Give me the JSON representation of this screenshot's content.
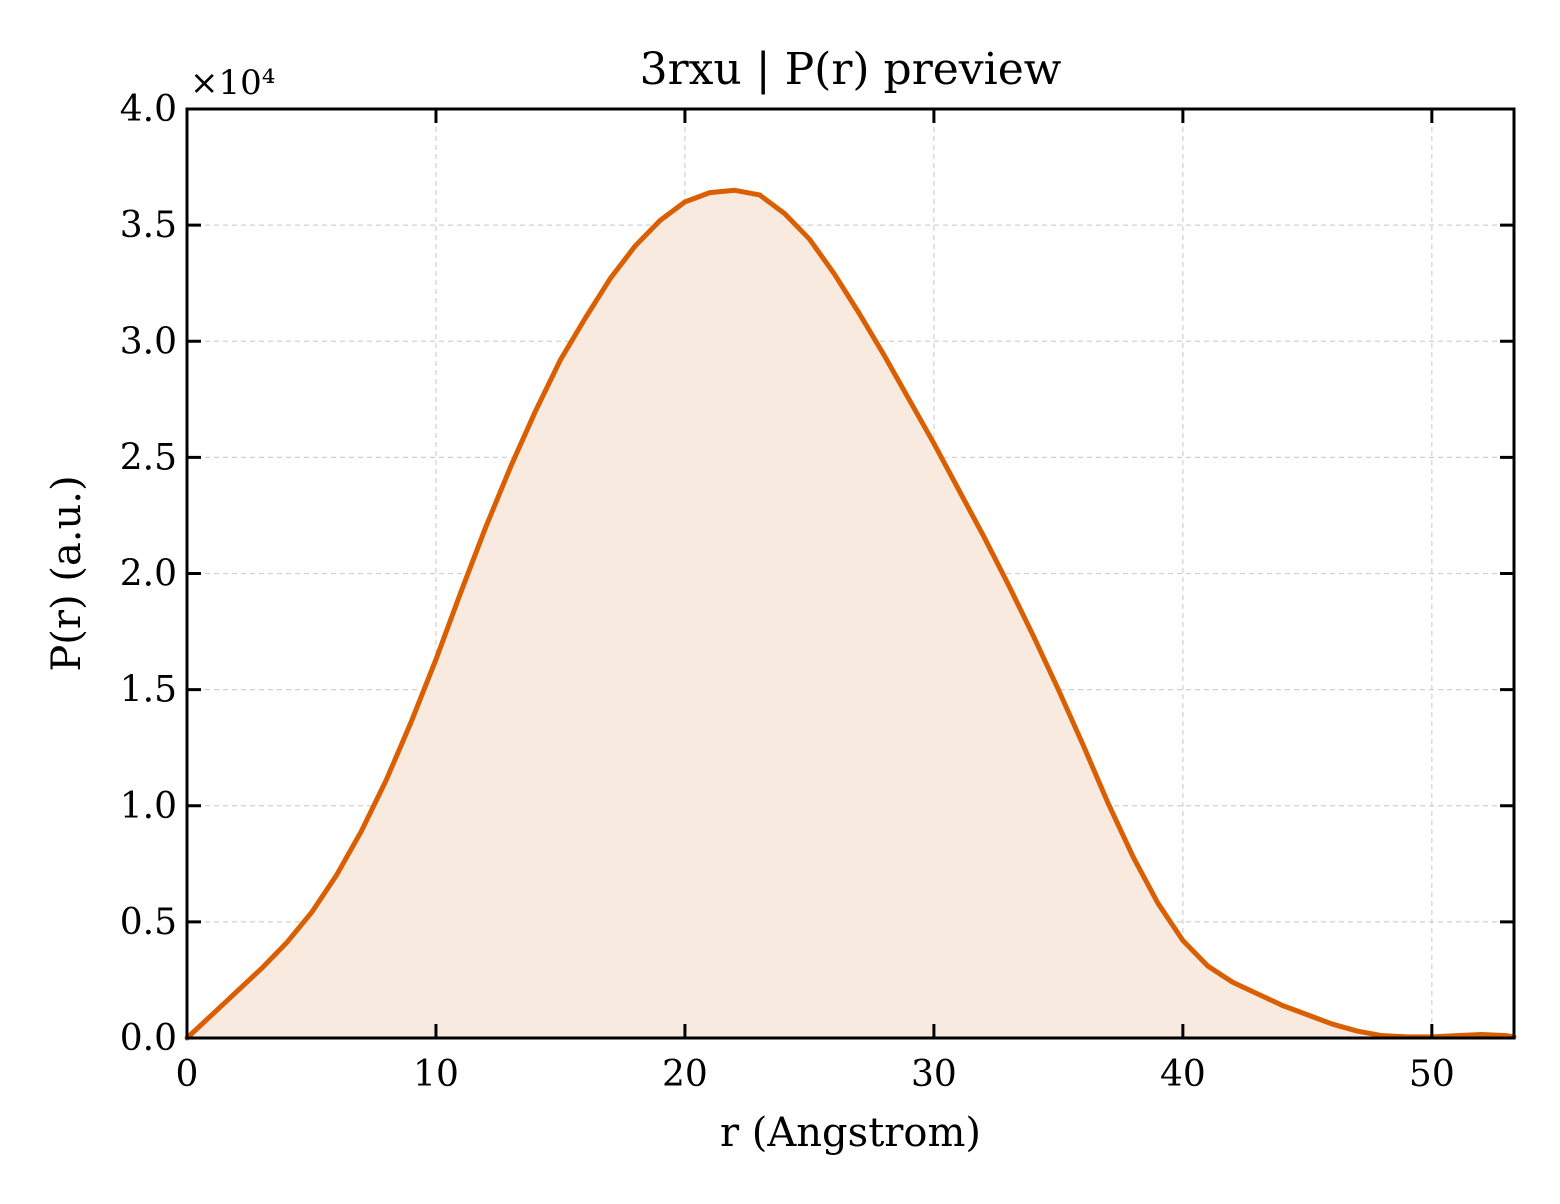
{
  "chart_data": {
    "type": "area",
    "title": "3rxu | P(r) preview",
    "xlabel": "r (Angstrom)",
    "ylabel": "P(r) (a.u.)",
    "y_offset_label": "×10⁴",
    "xlim": [
      0,
      53.3
    ],
    "ylim": [
      0,
      40000
    ],
    "xticks": [
      0,
      10,
      20,
      30,
      40,
      50
    ],
    "xtick_labels": [
      "0",
      "10",
      "20",
      "30",
      "40",
      "50"
    ],
    "yticks": [
      0,
      5000,
      10000,
      15000,
      20000,
      25000,
      30000,
      35000,
      40000
    ],
    "ytick_labels": [
      "0.0",
      "0.5",
      "1.0",
      "1.5",
      "2.0",
      "2.5",
      "3.0",
      "3.5",
      "4.0"
    ],
    "grid": true,
    "series": [
      {
        "color": "#d95f02",
        "fill_color": "#f9eadf",
        "x": [
          0,
          1,
          2,
          3,
          4,
          5,
          6,
          7,
          8,
          9,
          10,
          11,
          12,
          13,
          14,
          15,
          16,
          17,
          18,
          19,
          20,
          21,
          22,
          23,
          24,
          25,
          26,
          27,
          28,
          29,
          30,
          31,
          32,
          33,
          34,
          35,
          36,
          37,
          38,
          39,
          40,
          41,
          42,
          43,
          44,
          45,
          46,
          47,
          48,
          49,
          50,
          51,
          52,
          53,
          53.3
        ],
        "y": [
          0,
          1000,
          2000,
          3000,
          4100,
          5400,
          7000,
          8900,
          11100,
          13600,
          16300,
          19200,
          22000,
          24600,
          27000,
          29200,
          31000,
          32700,
          34100,
          35200,
          36000,
          36400,
          36500,
          36300,
          35500,
          34400,
          32900,
          31200,
          29400,
          27500,
          25600,
          23600,
          21600,
          19500,
          17300,
          15000,
          12600,
          10100,
          7800,
          5800,
          4200,
          3100,
          2400,
          1900,
          1400,
          1000,
          600,
          300,
          100,
          50,
          50,
          100,
          150,
          100,
          50
        ]
      }
    ]
  }
}
